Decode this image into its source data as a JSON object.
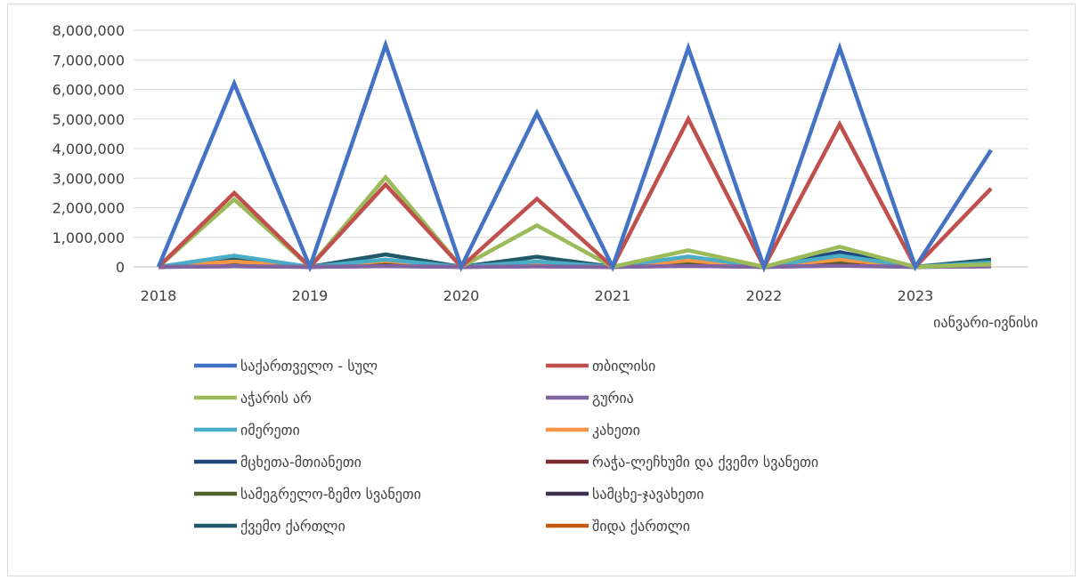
{
  "chart_data": {
    "type": "line",
    "x": [
      "2018",
      "",
      "2019",
      "",
      "2020",
      "",
      "2021",
      "",
      "2022",
      "",
      "2023",
      ""
    ],
    "x_tick_labels": [
      "2018",
      "2019",
      "2020",
      "2021",
      "2022",
      "2023"
    ],
    "x_tick_sublabel": "იანვარი-ივნისი",
    "y_tick_labels": [
      "0",
      "1,000,000",
      "2,000,000",
      "3,000,000",
      "4,000,000",
      "5,000,000",
      "6,000,000",
      "7,000,000",
      "8,000,000"
    ],
    "ylim": [
      0,
      8000000
    ],
    "grid": true,
    "legend_placement": "bottom",
    "series": [
      {
        "name": "საქართველო - სულ",
        "color": "#4472c4",
        "values": [
          0,
          6200000,
          0,
          7500000,
          0,
          5200000,
          0,
          7400000,
          0,
          7400000,
          0,
          3950000
        ]
      },
      {
        "name": "თბილისი",
        "color": "#c0504d",
        "values": [
          0,
          2500000,
          0,
          2780000,
          0,
          2300000,
          0,
          5000000,
          0,
          4820000,
          0,
          2650000
        ]
      },
      {
        "name": "აჭარის არ",
        "color": "#9bbb59",
        "values": [
          0,
          2280000,
          0,
          3030000,
          0,
          1400000,
          0,
          560000,
          0,
          680000,
          0,
          80000
        ]
      },
      {
        "name": "გურია",
        "color": "#8064a2",
        "values": [
          0,
          20000,
          0,
          25000,
          0,
          15000,
          0,
          30000,
          0,
          40000,
          0,
          15000
        ]
      },
      {
        "name": "იმერეთი",
        "color": "#4bacc6",
        "values": [
          0,
          380000,
          0,
          250000,
          0,
          180000,
          0,
          350000,
          0,
          380000,
          0,
          150000
        ]
      },
      {
        "name": "კახეთი",
        "color": "#f79646",
        "values": [
          0,
          180000,
          0,
          200000,
          0,
          120000,
          0,
          220000,
          0,
          250000,
          0,
          100000
        ]
      },
      {
        "name": "მცხეთა-მთიანეთი",
        "color": "#1f497d",
        "values": [
          0,
          100000,
          0,
          200000,
          0,
          100000,
          0,
          280000,
          0,
          500000,
          0,
          150000
        ]
      },
      {
        "name": "რაჭა-ლეჩხუმი და ქვემო სვანეთი",
        "color": "#7b2c2c",
        "values": [
          0,
          20000,
          0,
          30000,
          0,
          20000,
          0,
          40000,
          0,
          50000,
          0,
          20000
        ]
      },
      {
        "name": "სამეგრელო-ზემო სვანეთი",
        "color": "#4f6228",
        "values": [
          0,
          120000,
          0,
          150000,
          0,
          90000,
          0,
          180000,
          0,
          200000,
          0,
          90000
        ]
      },
      {
        "name": "სამცხე-ჯავახეთი",
        "color": "#3f3151",
        "values": [
          0,
          60000,
          0,
          80000,
          0,
          50000,
          0,
          100000,
          0,
          120000,
          0,
          50000
        ]
      },
      {
        "name": "ქვემო ქართლი",
        "color": "#215968",
        "values": [
          0,
          250000,
          0,
          420000,
          0,
          340000,
          0,
          300000,
          0,
          290000,
          0,
          240000
        ]
      },
      {
        "name": "შიდა ქართლი",
        "color": "#c55a11",
        "values": [
          0,
          150000,
          0,
          180000,
          0,
          100000,
          0,
          150000,
          0,
          160000,
          0,
          120000
        ]
      }
    ]
  }
}
